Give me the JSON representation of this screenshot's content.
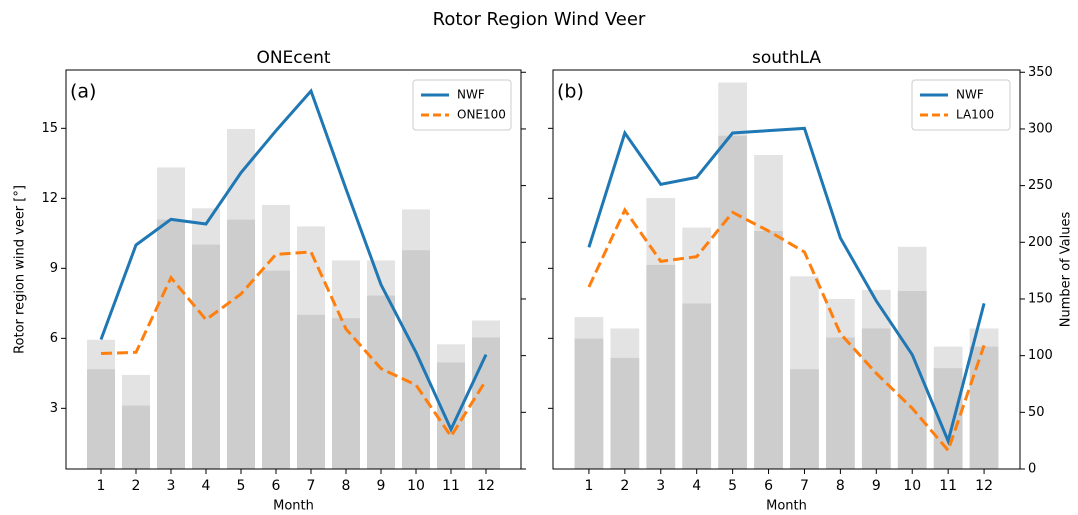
{
  "title": "Rotor Region Wind Veer",
  "chart_data": [
    {
      "type": "combo",
      "title": "ONEcent",
      "annotation": "(a)",
      "xlabel": "Month",
      "ylabel": "Rotor region wind veer [°]",
      "categories": [
        "1",
        "2",
        "3",
        "4",
        "5",
        "6",
        "7",
        "8",
        "9",
        "10",
        "11",
        "12"
      ],
      "ylim": [
        0.4,
        17.5
      ],
      "yticks": [
        3,
        6,
        9,
        12,
        15
      ],
      "ytick_labels": true,
      "y2lim": [
        0,
        352
      ],
      "y2ticks": [
        0,
        50,
        100,
        150,
        200,
        250,
        300,
        350
      ],
      "y2tick_labels": false,
      "legend": "upper right",
      "series": [
        {
          "type": "bar",
          "axis": "y2",
          "color": "#e3e3e3",
          "values": [
            114,
            83,
            266,
            230,
            300,
            233,
            214,
            184,
            184,
            229,
            110,
            131
          ]
        },
        {
          "type": "bar",
          "axis": "y2",
          "color": "#cdcdcd",
          "values": [
            88,
            56,
            220,
            198,
            220,
            175,
            136,
            133,
            153,
            193,
            94,
            116
          ]
        },
        {
          "type": "line",
          "name": "NWF",
          "color": "#1f77b4",
          "dashed": false,
          "values": [
            5.95,
            10.0,
            11.1,
            10.9,
            13.1,
            14.9,
            16.6,
            12.4,
            8.3,
            5.4,
            2.1,
            5.3
          ]
        },
        {
          "type": "line",
          "name": "ONE100",
          "color": "#ff7f0e",
          "dashed": true,
          "values": [
            5.35,
            5.4,
            8.6,
            6.8,
            7.9,
            9.6,
            9.7,
            6.4,
            4.7,
            4.0,
            1.8,
            4.2
          ]
        }
      ]
    },
    {
      "type": "combo",
      "title": "southLA",
      "annotation": "(b)",
      "xlabel": "Month",
      "y2label": "Number of Values",
      "categories": [
        "1",
        "2",
        "3",
        "4",
        "5",
        "6",
        "7",
        "8",
        "9",
        "10",
        "11",
        "12"
      ],
      "ylim": [
        0.4,
        17.5
      ],
      "yticks": [
        3,
        6,
        9,
        12,
        15
      ],
      "ytick_labels": false,
      "y2lim": [
        0,
        352
      ],
      "y2ticks": [
        0,
        50,
        100,
        150,
        200,
        250,
        300,
        350
      ],
      "y2tick_labels": true,
      "legend": "upper right",
      "series": [
        {
          "type": "bar",
          "axis": "y2",
          "color": "#e3e3e3",
          "values": [
            134,
            124,
            239,
            213,
            341,
            277,
            170,
            150,
            158,
            196,
            108,
            124
          ]
        },
        {
          "type": "bar",
          "axis": "y2",
          "color": "#cdcdcd",
          "values": [
            115,
            98,
            180,
            146,
            294,
            210,
            88,
            116,
            124,
            157,
            89,
            108
          ]
        },
        {
          "type": "line",
          "name": "NWF",
          "color": "#1f77b4",
          "dashed": false,
          "values": [
            9.9,
            14.8,
            12.6,
            12.9,
            14.8,
            14.9,
            15.0,
            10.3,
            7.6,
            5.3,
            1.6,
            7.5
          ]
        },
        {
          "type": "line",
          "name": "LA100",
          "color": "#ff7f0e",
          "dashed": true,
          "values": [
            8.2,
            11.5,
            9.3,
            9.5,
            11.4,
            10.6,
            9.7,
            6.2,
            4.5,
            3.0,
            1.2,
            5.7
          ]
        }
      ]
    }
  ]
}
